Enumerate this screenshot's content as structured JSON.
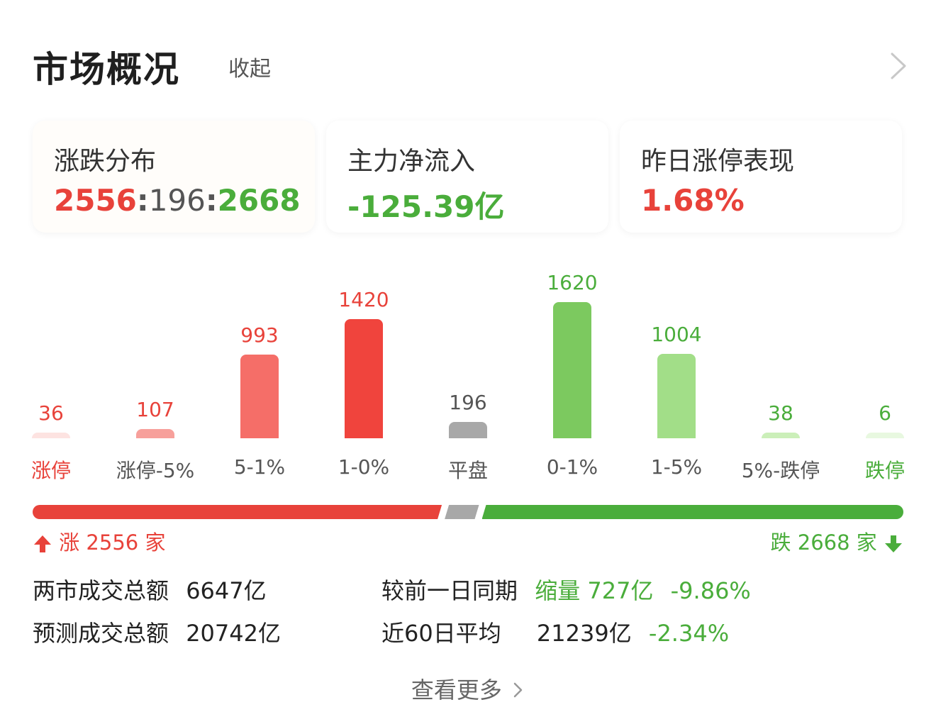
{
  "header": {
    "title": "市场概况",
    "collapse_label": "收起",
    "nav_icon": "chevron-right-icon"
  },
  "cards": {
    "distribution": {
      "label": "涨跌分布",
      "up": "2556",
      "flat": "196",
      "down": "2668",
      "sep": ":"
    },
    "net_inflow": {
      "label": "主力净流入",
      "value": "-125.39亿"
    },
    "yesterday_limit": {
      "label": "昨日涨停表现",
      "value": "1.68%"
    }
  },
  "chart_data": {
    "type": "bar",
    "categories": [
      "涨停",
      "涨停-5%",
      "5-1%",
      "1-0%",
      "平盘",
      "0-1%",
      "1-5%",
      "5%-跌停",
      "跌停"
    ],
    "values": [
      36,
      107,
      993,
      1420,
      196,
      1620,
      1004,
      38,
      6
    ],
    "value_labels": [
      "36",
      "107",
      "993",
      "1420",
      "196",
      "1620",
      "1004",
      "38",
      "6"
    ],
    "colors": [
      "#fde3e1",
      "#f7a09b",
      "#f56e68",
      "#f0443d",
      "#a8a8a8",
      "#7cc95f",
      "#a2de88",
      "#cbefb9",
      "#e8f8e0"
    ],
    "value_colors": [
      "#e8423a",
      "#e8423a",
      "#e8423a",
      "#e8423a",
      "#555555",
      "#4aad3b",
      "#4aad3b",
      "#4aad3b",
      "#4aad3b"
    ],
    "label_colors": [
      "#e8423a",
      "#555555",
      "#555555",
      "#555555",
      "#555555",
      "#555555",
      "#555555",
      "#555555",
      "#4aad3b"
    ]
  },
  "ratio_bar": {
    "up": 2556,
    "flat": 196,
    "down": 2668
  },
  "counts": {
    "up_text": "涨 2556 家",
    "down_text": "跌 2668 家"
  },
  "stats": {
    "turnover_label": "两市成交总额",
    "turnover_value": "6647亿",
    "compare_label": "较前一日同期",
    "compare_change": "缩量 727亿",
    "compare_pct": "-9.86%",
    "forecast_label": "预测成交总额",
    "forecast_value": "20742亿",
    "avg60_label": "近60日平均",
    "avg60_value": "21239亿",
    "avg60_pct": "-2.34%"
  },
  "footer": {
    "more_label": "查看更多"
  }
}
